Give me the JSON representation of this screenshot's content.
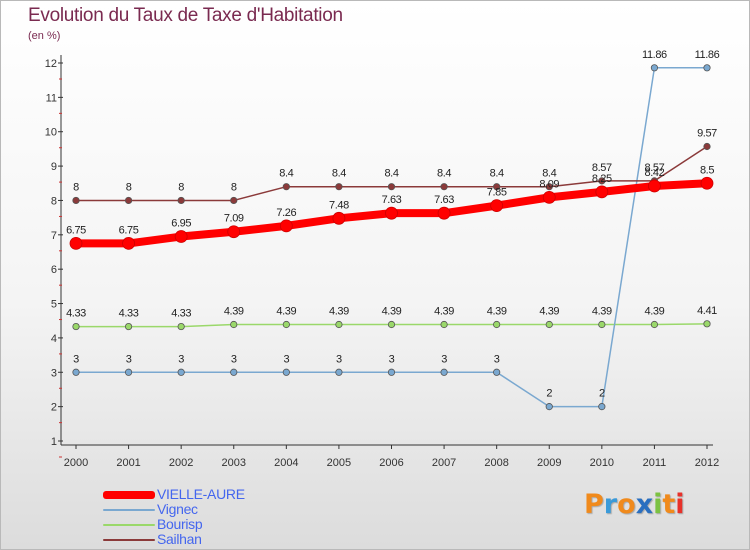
{
  "chart_data": {
    "type": "line",
    "title": "Evolution du Taux de Taxe d'Habitation",
    "ylabel": "(en %)",
    "xlabel": "",
    "categories": [
      "2000",
      "2001",
      "2002",
      "2003",
      "2004",
      "2005",
      "2006",
      "2007",
      "2008",
      "2009",
      "2010",
      "2011",
      "2012"
    ],
    "yticks": [
      "1",
      "2",
      "3",
      "4",
      "5",
      "6",
      "7",
      "8",
      "9",
      "10",
      "11",
      "12"
    ],
    "ylim": [
      1,
      12
    ],
    "grid": false,
    "legend_position": "bottom-left",
    "series": [
      {
        "name": "VIELLE-AURE",
        "color": "#ff0000",
        "values": [
          6.75,
          6.75,
          6.95,
          7.09,
          7.26,
          7.48,
          7.63,
          7.63,
          7.85,
          8.09,
          8.25,
          8.42,
          8.5
        ],
        "labels": [
          "6.75",
          "6.75",
          "6.95",
          "7.09",
          "7.26",
          "7.48",
          "7.63",
          "7.63",
          "7.85",
          "8.09",
          "8.25",
          "8.42",
          "8.5"
        ]
      },
      {
        "name": "Vignec",
        "color": "#7aa8d0",
        "values": [
          3,
          3,
          3,
          3,
          3,
          3,
          3,
          3,
          3,
          2,
          2,
          11.86,
          11.86
        ],
        "labels": [
          "3",
          "3",
          "3",
          "3",
          "3",
          "3",
          "3",
          "3",
          "3",
          "2",
          "2",
          "11.86",
          "11.86"
        ]
      },
      {
        "name": "Bourisp",
        "color": "#9ad86a",
        "values": [
          4.33,
          4.33,
          4.33,
          4.39,
          4.39,
          4.39,
          4.39,
          4.39,
          4.39,
          4.39,
          4.39,
          4.39,
          4.41
        ],
        "labels": [
          "4.33",
          "4.33",
          "4.33",
          "4.39",
          "4.39",
          "4.39",
          "4.39",
          "4.39",
          "4.39",
          "4.39",
          "4.39",
          "4.39",
          "4.41"
        ]
      },
      {
        "name": "Sailhan",
        "color": "#8b3a3a",
        "values": [
          8,
          8,
          8,
          8,
          8.4,
          8.4,
          8.4,
          8.4,
          8.4,
          8.4,
          8.57,
          8.57,
          9.57
        ],
        "labels": [
          "8",
          "8",
          "8",
          "8",
          "8.4",
          "8.4",
          "8.4",
          "8.4",
          "8.4",
          "8.4",
          "8.57",
          "8.57",
          "9.57"
        ]
      }
    ]
  },
  "legend": {
    "items": [
      {
        "label": "VIELLE-AURE",
        "color": "#ff0000",
        "text_color": "#4466ee"
      },
      {
        "label": "Vignec",
        "color": "#7aa8d0",
        "text_color": "#4466ee"
      },
      {
        "label": "Bourisp",
        "color": "#9ad86a",
        "text_color": "#4466ee"
      },
      {
        "label": "Sailhan",
        "color": "#8b3a3a",
        "text_color": "#4466ee"
      }
    ]
  },
  "logo": {
    "text": "Proxiti",
    "letters": [
      "P",
      "r",
      "o",
      "x",
      "i",
      "t",
      "i"
    ],
    "colors": [
      "#f08a1c",
      "#3a9ad9",
      "#f08a1c",
      "#2a6fc0",
      "#7cc242",
      "#f08a1c",
      "#e8312a"
    ]
  }
}
